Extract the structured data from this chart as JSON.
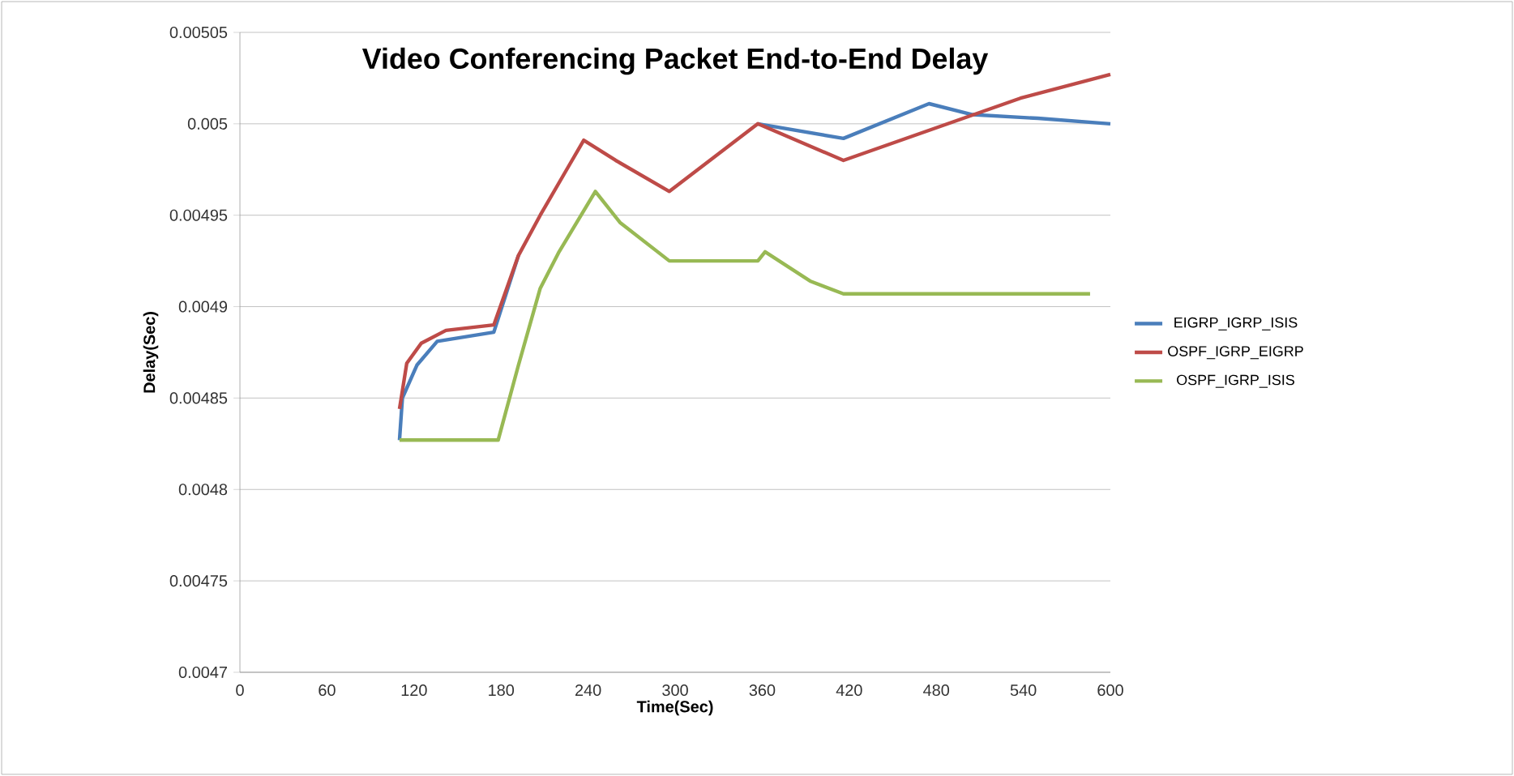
{
  "chart_data": {
    "type": "line",
    "title": "Video Conferencing Packet End-to-End Delay",
    "xlabel": "Time(Sec)",
    "ylabel": "Delay(Sec)",
    "xlim": [
      0,
      600
    ],
    "xticks": [
      0,
      60,
      120,
      180,
      240,
      300,
      360,
      420,
      480,
      540,
      600
    ],
    "ylim": [
      0.0047,
      0.00505
    ],
    "yticks": [
      0.0047,
      0.00475,
      0.0048,
      0.00485,
      0.0049,
      0.00495,
      0.005,
      0.00505
    ],
    "grid": "y",
    "legend": "right",
    "marker": "none",
    "line_style": "solid",
    "series": [
      {
        "name": "EIGRP_IGRP_ISIS",
        "color": "#4a7ebb",
        "x": [
          110,
          112,
          122,
          136,
          175,
          192,
          207,
          226,
          237,
          259,
          296,
          357,
          416,
          475,
          505,
          550,
          600
        ],
        "values": [
          0.004827,
          0.00485,
          0.004868,
          0.004881,
          0.004886,
          0.004928,
          null,
          null,
          null,
          null,
          null,
          0.005,
          0.004992,
          0.005011,
          0.005005,
          0.005003,
          0.005
        ]
      },
      {
        "name": "OSPF_IGRP_EIGRP",
        "color": "#be4b48",
        "x": [
          110,
          115,
          125,
          142,
          175,
          192,
          207,
          226,
          237,
          259,
          296,
          357,
          416,
          538,
          600
        ],
        "values": [
          0.004844,
          0.004869,
          0.00488,
          0.004887,
          0.00489,
          0.004928,
          0.00495,
          0.004976,
          0.004991,
          0.00498,
          0.004963,
          0.005,
          0.00498,
          0.005014,
          0.005027
        ]
      },
      {
        "name": "OSPF_IGRP_ISIS",
        "color": "#98b954",
        "x": [
          110,
          178,
          192,
          207,
          220,
          245,
          262,
          296,
          357,
          362,
          393,
          416,
          586
        ],
        "values": [
          0.004827,
          0.004827,
          0.004868,
          0.00491,
          0.00493,
          0.004963,
          0.004946,
          0.004925,
          0.004925,
          0.00493,
          0.004914,
          0.004907,
          0.004907
        ]
      }
    ]
  }
}
